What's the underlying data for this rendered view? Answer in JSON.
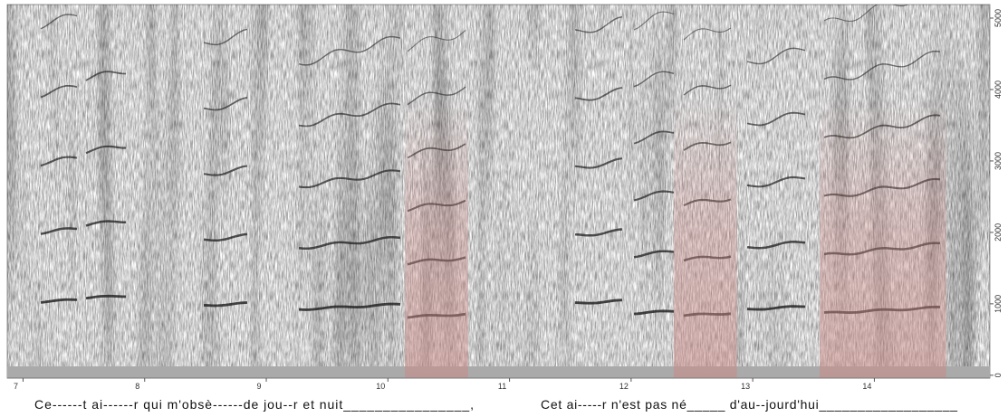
{
  "chart_data": {
    "type": "spectrogram",
    "xlim": [
      6.87,
      14.95
    ],
    "xticks": [
      7,
      8,
      9,
      10,
      11,
      12,
      13,
      14
    ],
    "ylim": [
      -40,
      5190
    ],
    "yticks": [
      0,
      1000,
      2000,
      3000,
      4000,
      5000
    ],
    "highlights": [
      {
        "start": 10.14,
        "end": 10.66
      },
      {
        "start": 12.35,
        "end": 12.87
      },
      {
        "start": 13.55,
        "end": 14.59
      }
    ],
    "highlight_color": "#c98a86",
    "lyrics": [
      "Ce------t ai------r qui m'obsè------de jou--r et   nuit________________,",
      "Cet ai-----r n'est pas né_____ d'au--jourd'hui__________________"
    ]
  }
}
